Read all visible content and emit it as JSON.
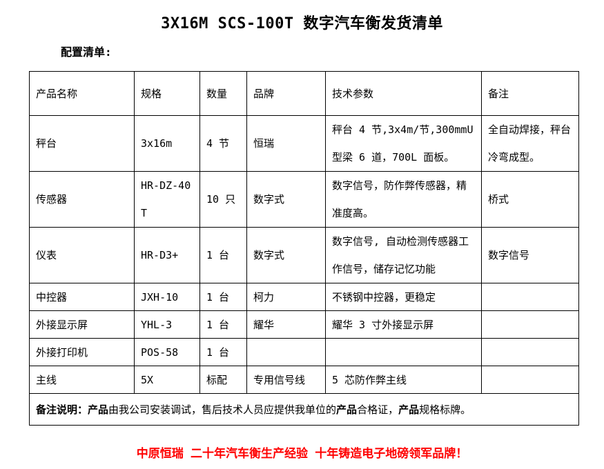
{
  "page": {
    "title": "3X16M SCS-100T 数字汽车衡发货清单",
    "section_label": "配置清单:",
    "slogan": "中原恒瑞 二十年汽车衡生产经验 十年铸造电子地磅领军品牌！"
  },
  "colors": {
    "text": "#000000",
    "border": "#000000",
    "slogan_red": "#ff0000"
  },
  "table": {
    "headers": [
      "产品名称",
      "规格",
      "数量",
      "品牌",
      "技术参数",
      "备注"
    ],
    "rows": [
      {
        "cells": [
          "秤台",
          "3x16m",
          "4 节",
          "恒瑞",
          "秤台 4 节,3x4m/节,300mmU 型梁 6 道，700L 面板。",
          "全自动焊接，秤台冷弯成型。"
        ]
      },
      {
        "cells": [
          "传感器",
          "HR-DZ-40T",
          "10 只",
          "数字式",
          "数字信号，防作弊传感器，精准度高。",
          "桥式"
        ]
      },
      {
        "cells": [
          "仪表",
          "HR-D3+",
          "1 台",
          "数字式",
          "数字信号, 自动检测传感器工作信号，储存记忆功能",
          "数字信号"
        ]
      },
      {
        "cells": [
          "中控器",
          "JXH-10",
          "1 台",
          "柯力",
          "不锈钢中控器，更稳定",
          ""
        ]
      },
      {
        "cells": [
          "外接显示屏",
          "YHL-3",
          "1 台",
          "耀华",
          "耀华 3 寸外接显示屏",
          ""
        ]
      },
      {
        "cells": [
          "外接打印机",
          "POS-58",
          "1 台",
          "",
          "",
          ""
        ]
      },
      {
        "cells": [
          "主线",
          "5X",
          "标配",
          "专用信号线",
          "5 芯防作弊主线",
          ""
        ]
      }
    ],
    "note": {
      "label": "备注说明：",
      "bold1": "产品",
      "text1": "由我公司安装调试，售后技术人员应提供我单位的",
      "bold2": "产品",
      "text2": "合格证，",
      "bold3": "产品",
      "text3": "规格标牌。"
    }
  }
}
